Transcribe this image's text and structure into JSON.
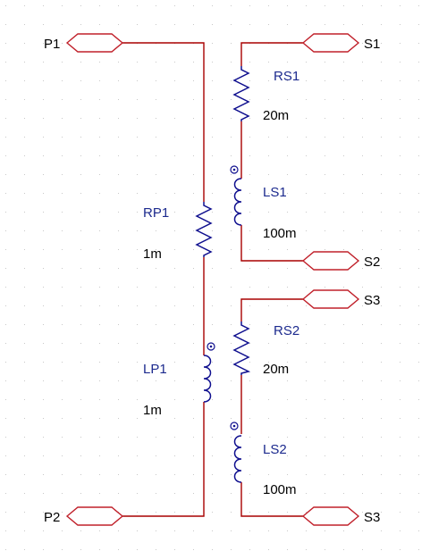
{
  "colors": {
    "wire": "#a80000",
    "component": "#10108f",
    "port": "#c0202a",
    "grid": "#c8c8c8"
  },
  "ports": {
    "p1": "P1",
    "p2": "P2",
    "s1": "S1",
    "s2": "S2",
    "s3_top": "S3",
    "s3_bottom": "S3"
  },
  "components": {
    "rp1": {
      "ref": "RP1",
      "value": "1m"
    },
    "lp1": {
      "ref": "LP1",
      "value": "1m"
    },
    "rs1": {
      "ref": "RS1",
      "value": "20m"
    },
    "ls1": {
      "ref": "LS1",
      "value": "100m"
    },
    "rs2": {
      "ref": "RS2",
      "value": "20m"
    },
    "ls2": {
      "ref": "LS2",
      "value": "100m"
    }
  }
}
